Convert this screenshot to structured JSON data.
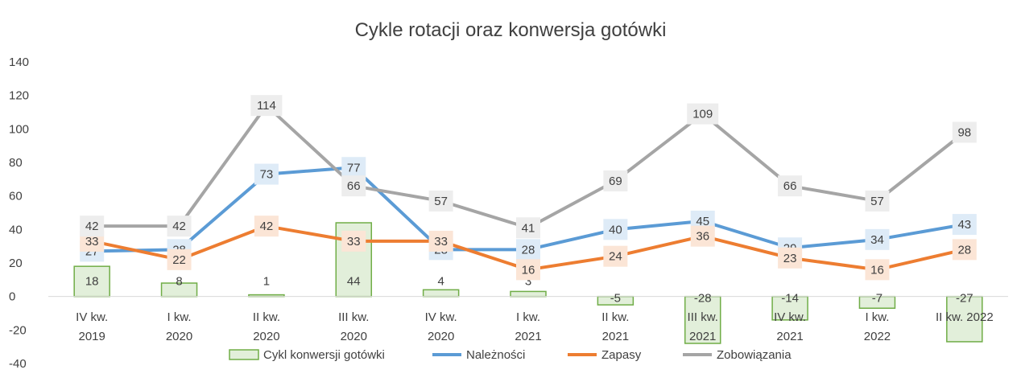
{
  "chart_data": {
    "type": "bar+line",
    "title": "Cykle rotacji oraz konwersja gotówki",
    "categories": [
      [
        "IV kw.",
        "2019"
      ],
      [
        "I kw.",
        "2020"
      ],
      [
        "II kw.",
        "2020"
      ],
      [
        "III kw.",
        "2020"
      ],
      [
        "IV kw.",
        "2020"
      ],
      [
        "I kw.",
        "2021"
      ],
      [
        "II kw.",
        "2021"
      ],
      [
        "III kw.",
        "2021"
      ],
      [
        "IV kw.",
        "2021"
      ],
      [
        "I kw.",
        "2022"
      ],
      [
        "II kw. 2022",
        ""
      ]
    ],
    "ylim": [
      -40,
      140
    ],
    "yticks": [
      -40,
      -20,
      0,
      20,
      40,
      60,
      80,
      100,
      120,
      140
    ],
    "grid": false,
    "legend_position": "bottom",
    "series": [
      {
        "name": "Cykl konwersji gotówki",
        "type": "bar",
        "color": "#e2efda",
        "edge": "#70ad47",
        "values": [
          18,
          8,
          1,
          44,
          4,
          3,
          -5,
          -28,
          -14,
          -7,
          -27
        ]
      },
      {
        "name": "Należności",
        "type": "line",
        "color": "#5b9bd5",
        "label_bg": "#deebf7",
        "values": [
          27,
          28,
          73,
          77,
          28,
          28,
          40,
          45,
          29,
          34,
          43
        ]
      },
      {
        "name": "Zapasy",
        "type": "line",
        "color": "#ed7d31",
        "label_bg": "#fbe5d6",
        "values": [
          33,
          22,
          42,
          33,
          33,
          16,
          24,
          36,
          23,
          16,
          28
        ]
      },
      {
        "name": "Zobowiązania",
        "type": "line",
        "color": "#a5a5a5",
        "label_bg": "#ededed",
        "values": [
          42,
          42,
          114,
          66,
          57,
          41,
          69,
          109,
          66,
          57,
          98
        ]
      }
    ]
  }
}
